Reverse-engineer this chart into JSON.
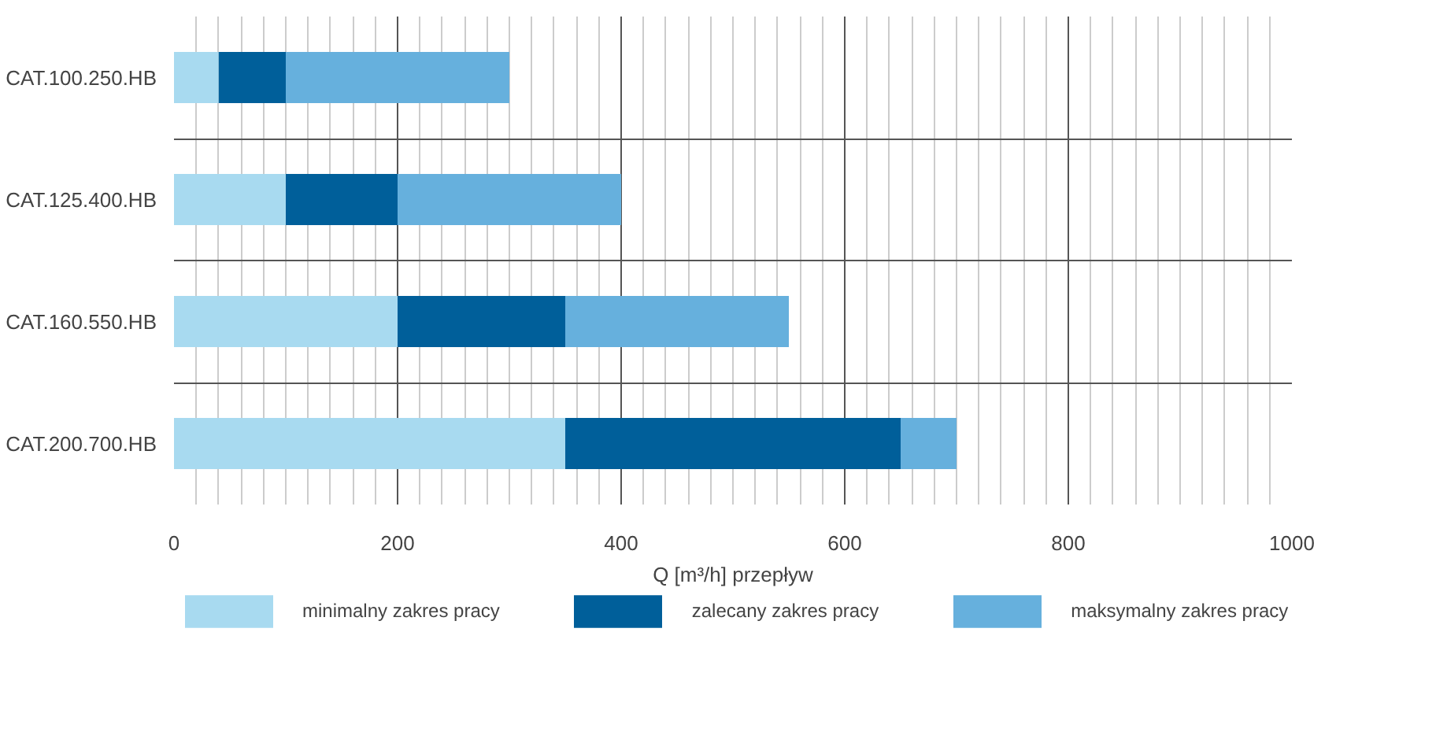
{
  "chart_data": {
    "type": "bar",
    "orientation": "horizontal",
    "stacked": true,
    "categories": [
      "CAT.100.250.HB",
      "CAT.125.400.HB",
      "CAT.160.550.HB",
      "CAT.200.700.HB"
    ],
    "series": [
      {
        "name": "minimalny zakres pracy",
        "color": "#a8daf0",
        "values": [
          40,
          100,
          200,
          350
        ]
      },
      {
        "name": "zalecany zakres pracy",
        "color": "#005f9a",
        "values": [
          60,
          100,
          150,
          300
        ]
      },
      {
        "name": "maksymalny zakres pracy",
        "color": "#66b0dd",
        "values": [
          200,
          200,
          200,
          50
        ]
      }
    ],
    "xlim": [
      0,
      1000
    ],
    "xticks": [
      0,
      200,
      400,
      600,
      800,
      1000
    ],
    "xlabel": "Q [m³/h] przepływ",
    "grid": true,
    "legend": "bottom"
  }
}
